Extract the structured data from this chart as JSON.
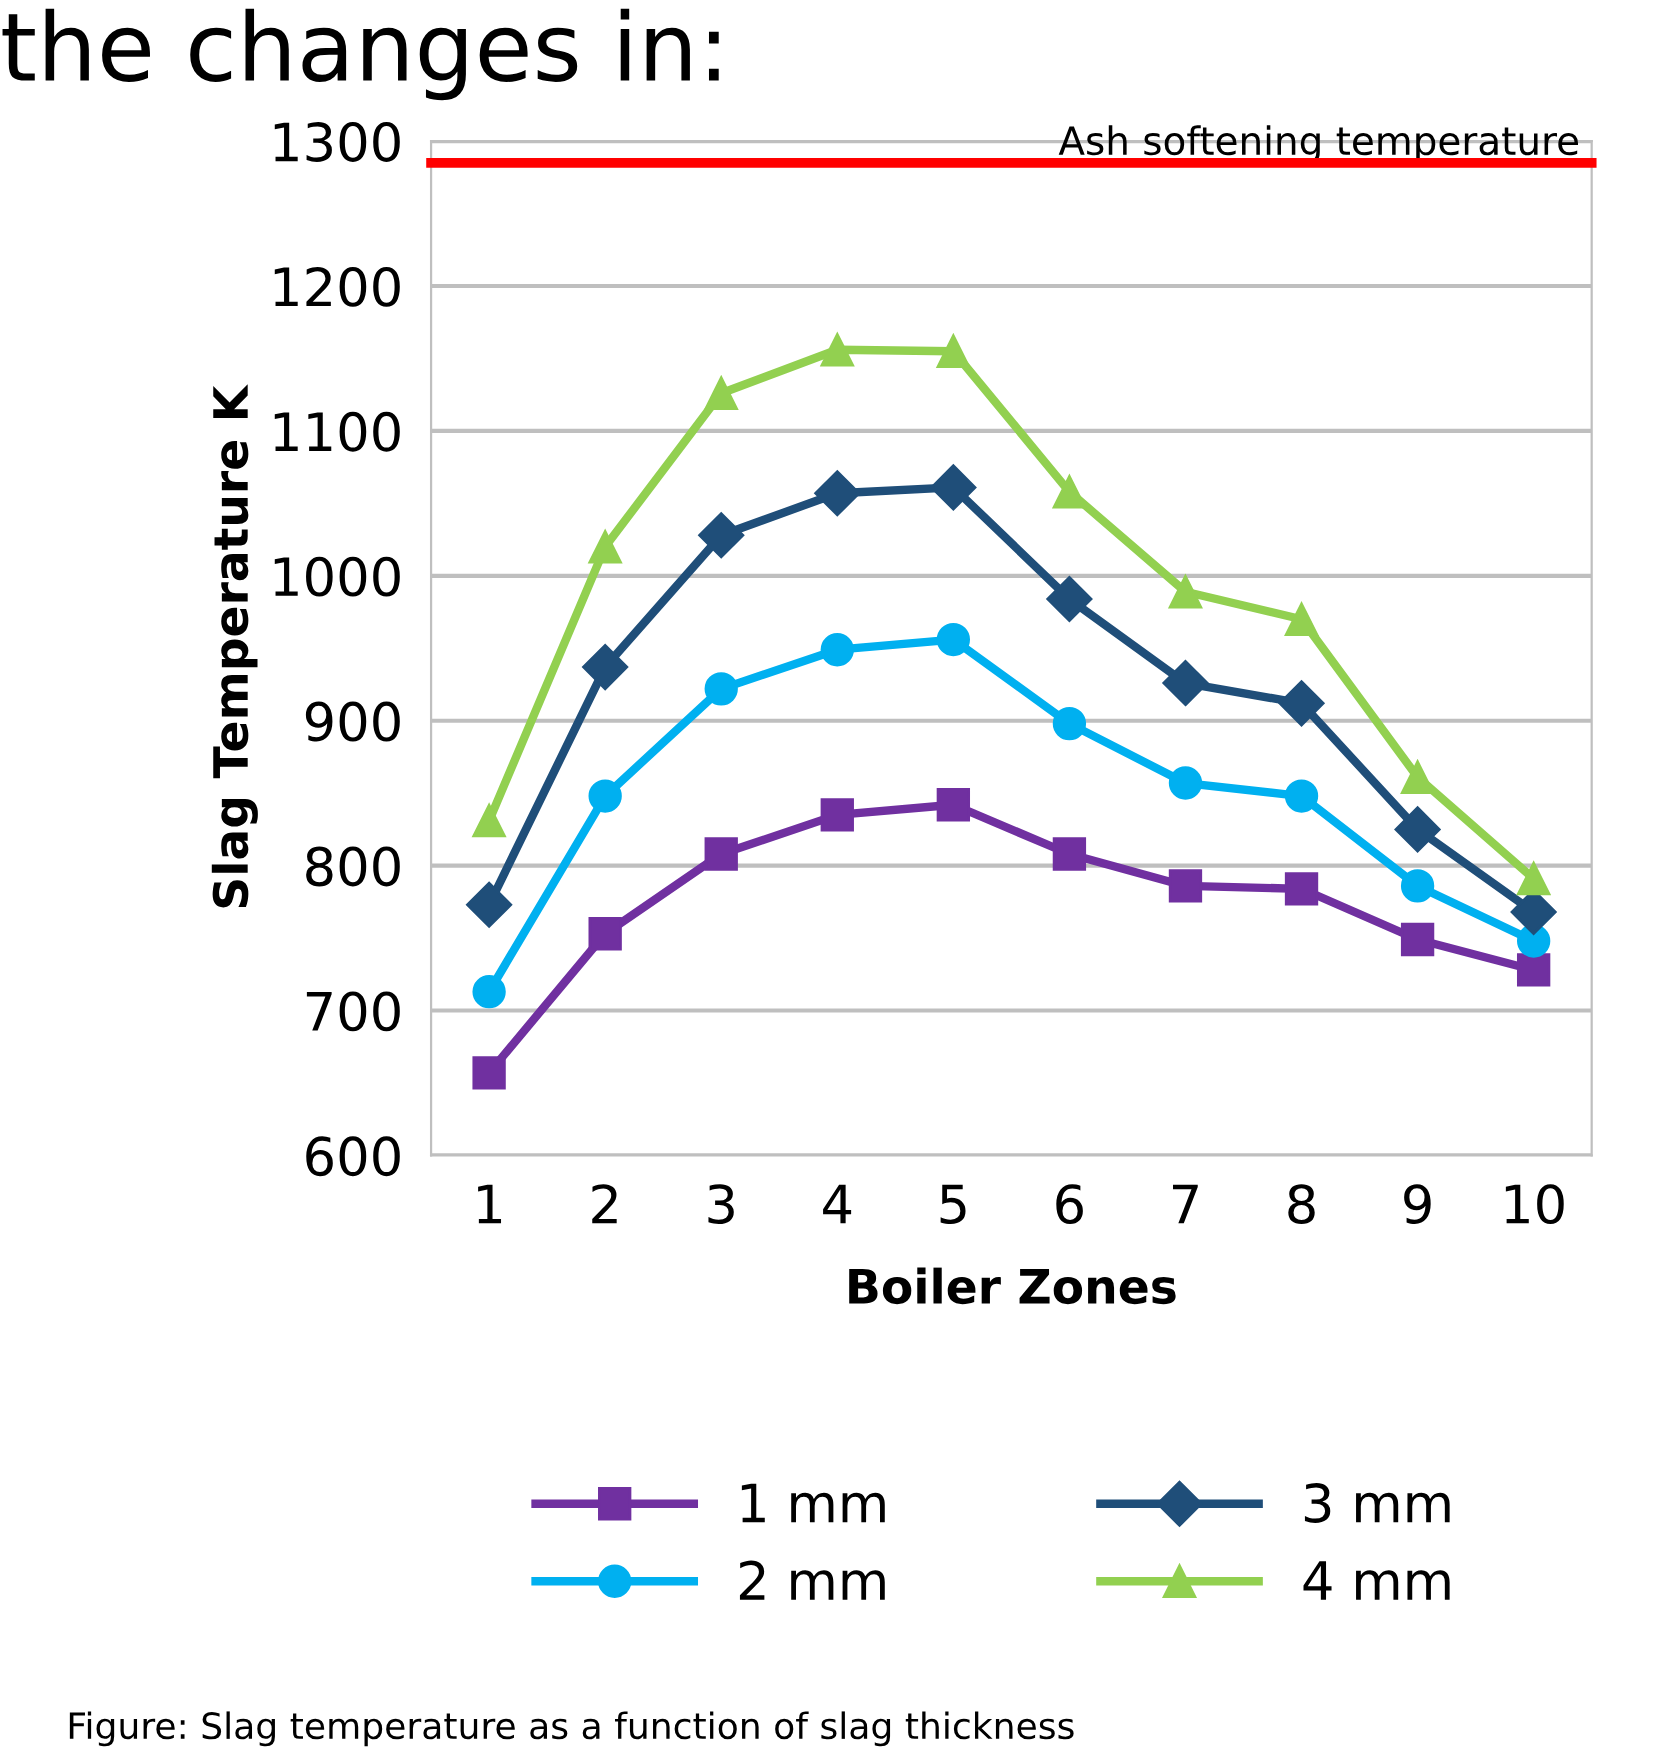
{
  "chart_data": {
    "type": "line",
    "title": "the changes in:",
    "xlabel": "Boiler Zones",
    "ylabel": "Slag Temperature K",
    "categories": [
      "1",
      "2",
      "3",
      "4",
      "5",
      "6",
      "7",
      "8",
      "9",
      "10"
    ],
    "series": [
      {
        "name": "1 mm",
        "color": "#7030a0",
        "marker": "square",
        "values": [
          657,
          753,
          808,
          835,
          842,
          808,
          786,
          784,
          749,
          728
        ]
      },
      {
        "name": "2 mm",
        "color": "#00b0f0",
        "marker": "circle",
        "values": [
          713,
          848,
          922,
          949,
          956,
          898,
          857,
          848,
          786,
          748
        ]
      },
      {
        "name": "3 mm",
        "color": "#1f4e79",
        "marker": "diamond",
        "values": [
          773,
          937,
          1028,
          1057,
          1061,
          984,
          926,
          912,
          825,
          768
        ]
      },
      {
        "name": "4 mm",
        "color": "#92d050",
        "marker": "triangle",
        "values": [
          831,
          1020,
          1126,
          1156,
          1155,
          1058,
          989,
          970,
          861,
          791
        ]
      }
    ],
    "ylim": [
      600,
      1300
    ],
    "yticks": [
      600,
      700,
      800,
      900,
      1000,
      1100,
      1200,
      1300
    ],
    "grid": "y",
    "legend": "bottom",
    "ref_lines": [
      {
        "axis": "y",
        "value": 1285,
        "label": "Ash softening temperature",
        "color": "#ff0000"
      }
    ],
    "annotations": [
      "Figure: Slag temperature as a function of slag thickness"
    ]
  }
}
